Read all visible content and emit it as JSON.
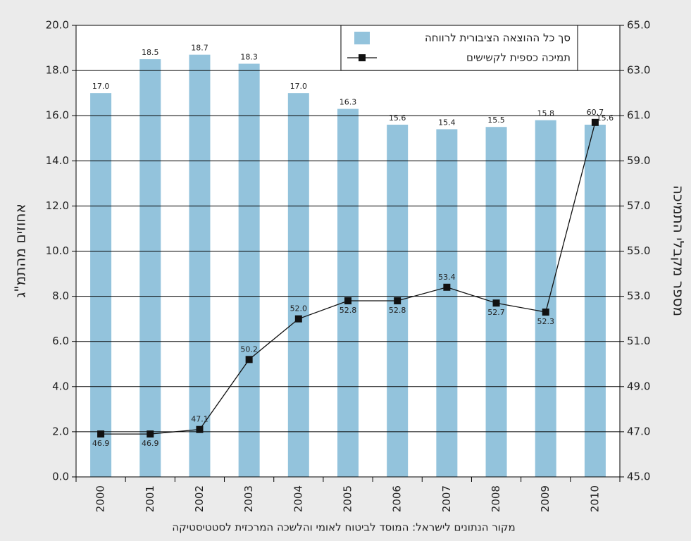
{
  "chart_data": {
    "type": "bar-line",
    "ylabel": "אחוזים מהתמ\"ג",
    "y2label": "מספר מקבלי התמיכה",
    "source": "מקור הנתונים לישראל:  המוסד לביטוח לאומי והלשכה המרכזית לסטטיסטיקה",
    "categories": [
      "2000",
      "2001",
      "2002",
      "2003",
      "2004",
      "2005",
      "2006",
      "2007",
      "2008",
      "2009",
      "2010"
    ],
    "series": [
      {
        "name": "סך כל ההוצאה הציבורית לרווחה",
        "type": "bar",
        "color": "#93c3dc",
        "values": [
          17.0,
          18.5,
          18.7,
          18.3,
          17.0,
          16.3,
          15.6,
          15.4,
          15.5,
          15.8,
          15.6
        ],
        "value_labels": [
          "17.0",
          "18.5",
          "18.7",
          "18.3",
          "17.0",
          "16.3",
          "15.6",
          "15.4",
          "15.5",
          "15.8",
          "15.6"
        ]
      },
      {
        "name": "תמיכה כספית לקשישים",
        "type": "line",
        "axis": "y2",
        "color": "#111111",
        "values": [
          46.9,
          46.9,
          47.1,
          50.2,
          52.0,
          52.8,
          52.8,
          53.4,
          52.7,
          52.3,
          60.7
        ],
        "value_labels": [
          "46.9",
          "46.9",
          "47.1",
          "50.2",
          "52.0",
          "52.8",
          "52.8",
          "53.4",
          "52.7",
          "52.3",
          "60.7"
        ]
      }
    ],
    "ylim": [
      0,
      20
    ],
    "yticks": [
      {
        "value": 0,
        "label": "0.0"
      },
      {
        "value": 2,
        "label": "2.0"
      },
      {
        "value": 4,
        "label": "4.0"
      },
      {
        "value": 6,
        "label": "6.0"
      },
      {
        "value": 8,
        "label": "8.0"
      },
      {
        "value": 10,
        "label": "10.0"
      },
      {
        "value": 12,
        "label": "12.0"
      },
      {
        "value": 14,
        "label": "14.0"
      },
      {
        "value": 16,
        "label": "16.0"
      },
      {
        "value": 18,
        "label": "18.0"
      },
      {
        "value": 20,
        "label": "20.0"
      }
    ],
    "y2lim": [
      45,
      65
    ],
    "y2ticks": [
      {
        "value": 45,
        "label": "45.0"
      },
      {
        "value": 47,
        "label": "47.0"
      },
      {
        "value": 49,
        "label": "49.0"
      },
      {
        "value": 51,
        "label": "51.0"
      },
      {
        "value": 53,
        "label": "53.0"
      },
      {
        "value": 55,
        "label": "55.0"
      },
      {
        "value": 57,
        "label": "57.0"
      },
      {
        "value": 59,
        "label": "59.0"
      },
      {
        "value": 61,
        "label": "61.0"
      },
      {
        "value": 63,
        "label": "63.0"
      },
      {
        "value": 65,
        "label": "65.0"
      }
    ],
    "grid": true,
    "legend": "top-right"
  }
}
